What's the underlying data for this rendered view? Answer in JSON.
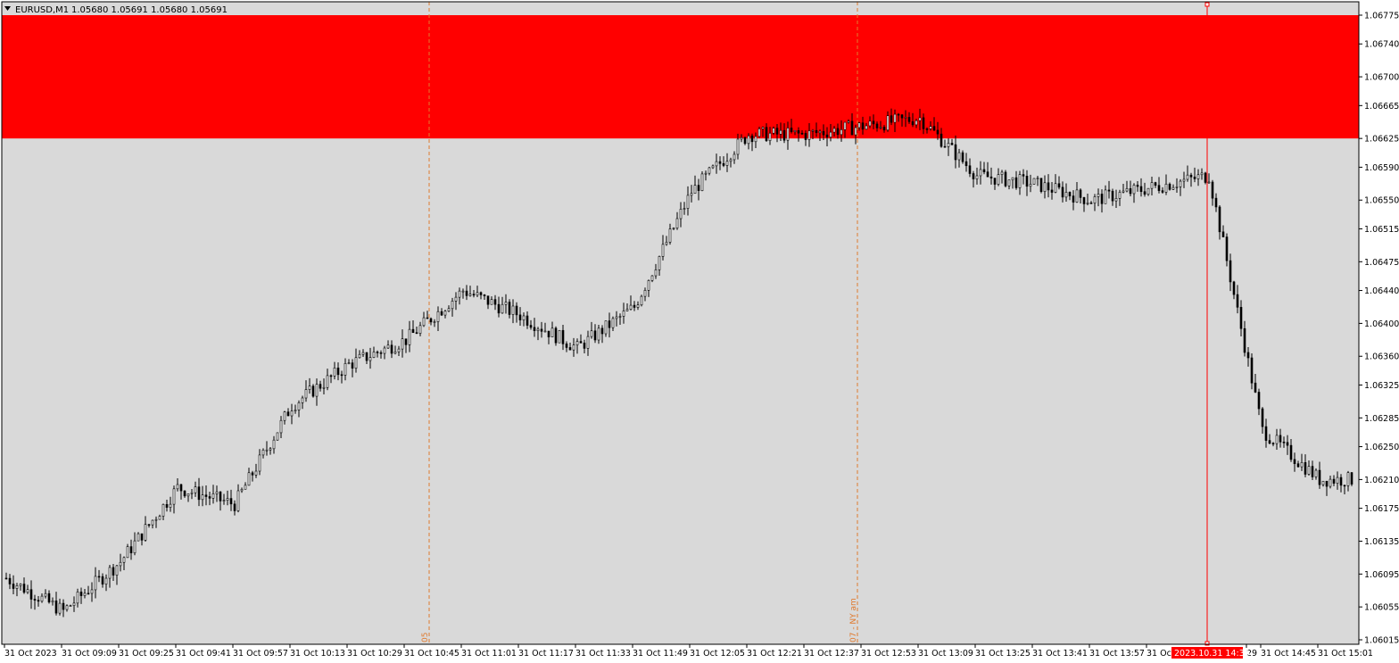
{
  "header": {
    "symbol_label": "EURUSD,M1",
    "ohlc": "1.05680 1.05691 1.05680 1.05691"
  },
  "colors": {
    "plot_background": "#d9d9d9",
    "outer_background": "#ffffff",
    "zone_fill": "#ff0000",
    "candle": "#000000",
    "session_line": "#e07b30",
    "cursor_line": "#ff0000",
    "axis_text": "#000000"
  },
  "chart_data": {
    "type": "candlestick",
    "title": "",
    "xlabel": "",
    "ylabel": "",
    "ylim": [
      1.06005,
      1.06785
    ],
    "grid": false,
    "y_ticks": [
      "1.06775",
      "1.06740",
      "1.06700",
      "1.06665",
      "1.06625",
      "1.06590",
      "1.06550",
      "1.06515",
      "1.06475",
      "1.06440",
      "1.06400",
      "1.06360",
      "1.06325",
      "1.06285",
      "1.06250",
      "1.06210",
      "1.06175",
      "1.06135",
      "1.06095",
      "1.06055",
      "1.06015"
    ],
    "x_ticks": [
      "31 Oct 2023",
      "31 Oct 09:09",
      "31 Oct 09:25",
      "31 Oct 09:41",
      "31 Oct 09:57",
      "31 Oct 10:13",
      "31 Oct 10:29",
      "31 Oct 10:45",
      "31 Oct 11:01",
      "31 Oct 11:17",
      "31 Oct 11:33",
      "31 Oct 11:49",
      "31 Oct 12:05",
      "31 Oct 12:21",
      "31 Oct 12:37",
      "31 Oct 12:53",
      "31 Oct 13:09",
      "31 Oct 13:25",
      "31 Oct 13:41",
      "31 Oct 13:57",
      "31 Oct",
      "29",
      "31 Oct 14:45",
      "31 Oct 15:01"
    ],
    "price_path": [
      [
        "31 Oct 2023",
        1.0609
      ],
      [
        "31 Oct 09:09",
        1.0605
      ],
      [
        "31 Oct 09:25",
        1.0611
      ],
      [
        "31 Oct 09:41",
        1.062
      ],
      [
        "31 Oct 09:57",
        1.0618
      ],
      [
        "31 Oct 10:13",
        1.063
      ],
      [
        "31 Oct 10:29",
        1.0635
      ],
      [
        "31 Oct 10:45",
        1.0638
      ],
      [
        "31 Oct 11:01",
        1.0644
      ],
      [
        "31 Oct 11:17",
        1.0641
      ],
      [
        "31 Oct 11:33",
        1.0637
      ],
      [
        "31 Oct 11:49",
        1.0642
      ],
      [
        "31 Oct 12:05",
        1.0656
      ],
      [
        "31 Oct 12:21",
        1.0663
      ],
      [
        "31 Oct 12:37",
        1.0663
      ],
      [
        "31 Oct 12:53",
        1.0664
      ],
      [
        "31 Oct 13:09",
        1.0665
      ],
      [
        "31 Oct 13:25",
        1.0658
      ],
      [
        "31 Oct 13:41",
        1.0657
      ],
      [
        "31 Oct 13:57",
        1.0655
      ],
      [
        "31 Oct 2023.10.31 14:30",
        1.0658
      ],
      [
        "31 Oct 14:45",
        1.0627
      ],
      [
        "31 Oct 15:01",
        1.0621
      ]
    ],
    "zones": [
      {
        "from": 1.06625,
        "to": 1.06775
      }
    ],
    "session_lines": [
      {
        "at": "31 Oct 10:52",
        "label": "05"
      },
      {
        "at": "31 Oct 12:52",
        "label": "07 - NY am"
      }
    ],
    "cursor": {
      "time_label": "2023.10.31 14:30"
    }
  }
}
